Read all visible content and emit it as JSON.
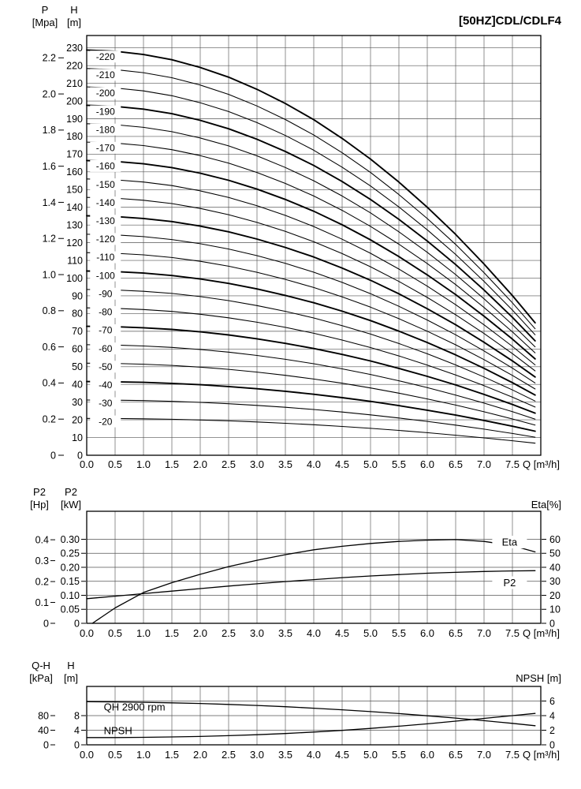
{
  "title": "[50HZ]CDL/CDLF4",
  "x_axis_label": "Q [m³/h]",
  "x_tick_labels": [
    "0.0",
    "0.5",
    "1.0",
    "1.5",
    "2.0",
    "2.5",
    "3.0",
    "3.5",
    "4.0",
    "4.5",
    "5.0",
    "5.5",
    "6.0",
    "6.5",
    "7.0",
    "7.5"
  ],
  "chart_data": [
    {
      "id": "qh-curves",
      "type": "line",
      "title": "[50HZ]CDL/CDLF4",
      "x_range": [
        0,
        8
      ],
      "y_range_m": [
        0,
        237
      ],
      "axis_p": {
        "title_lines": [
          "P",
          "[Mpa]"
        ],
        "labels": [
          "0",
          "0.2",
          "0.4",
          "0.6",
          "0.8",
          "1.0",
          "1.2",
          "1.4",
          "1.6",
          "1.8",
          "2.0",
          "2.2"
        ],
        "pos": [
          0,
          20.4,
          40.8,
          61.2,
          81.6,
          102,
          122.4,
          142.8,
          163.2,
          183.6,
          204,
          224.4
        ]
      },
      "axis_h": {
        "title_lines": [
          "H",
          "[m]"
        ],
        "labels": [
          "0",
          "10",
          "20",
          "30",
          "40",
          "50",
          "60",
          "70",
          "80",
          "90",
          "100",
          "110",
          "120",
          "130",
          "140",
          "150",
          "160",
          "170",
          "180",
          "190",
          "200",
          "210",
          "220",
          "230"
        ],
        "pos": [
          0,
          10,
          20,
          30,
          40,
          50,
          60,
          70,
          80,
          90,
          100,
          110,
          120,
          130,
          140,
          150,
          160,
          170,
          180,
          190,
          200,
          210,
          220,
          230
        ]
      },
      "note": "head_m[i] = h0 * head_factor[i]; curves are the CDL/CDLF4 stage family",
      "x_points": [
        0,
        0.5,
        1,
        1.5,
        2,
        2.5,
        3,
        3.5,
        4,
        4.5,
        5,
        5.5,
        6,
        6.5,
        7,
        7.5,
        7.9
      ],
      "head_factor": [
        1,
        0.997,
        0.989,
        0.976,
        0.957,
        0.933,
        0.903,
        0.868,
        0.828,
        0.782,
        0.731,
        0.674,
        0.612,
        0.545,
        0.472,
        0.394,
        0.327
      ],
      "curve_label_x": 0.33,
      "series": [
        {
          "label": "-20",
          "h0": 20.8,
          "label_h": 19.1,
          "bold": false
        },
        {
          "label": "-30",
          "h0": 31.2,
          "label_h": 29.4,
          "bold": false
        },
        {
          "label": "-40",
          "h0": 41.6,
          "label_h": 39.7,
          "bold": true
        },
        {
          "label": "-50",
          "h0": 52.0,
          "label_h": 50.0,
          "bold": false
        },
        {
          "label": "-60",
          "h0": 62.4,
          "label_h": 60.3,
          "bold": false
        },
        {
          "label": "-70",
          "h0": 72.8,
          "label_h": 70.6,
          "bold": true
        },
        {
          "label": "-80",
          "h0": 83.2,
          "label_h": 80.9,
          "bold": false
        },
        {
          "label": "-90",
          "h0": 93.6,
          "label_h": 91.2,
          "bold": false
        },
        {
          "label": "-100",
          "h0": 104.0,
          "label_h": 101.5,
          "bold": true
        },
        {
          "label": "-110",
          "h0": 114.4,
          "label_h": 111.8,
          "bold": false
        },
        {
          "label": "-120",
          "h0": 124.8,
          "label_h": 122.1,
          "bold": false
        },
        {
          "label": "-130",
          "h0": 135.2,
          "label_h": 132.4,
          "bold": true
        },
        {
          "label": "-140",
          "h0": 145.6,
          "label_h": 142.7,
          "bold": false
        },
        {
          "label": "-150",
          "h0": 156.0,
          "label_h": 153.0,
          "bold": false
        },
        {
          "label": "-160",
          "h0": 166.4,
          "label_h": 163.3,
          "bold": true
        },
        {
          "label": "-170",
          "h0": 176.8,
          "label_h": 173.6,
          "bold": false
        },
        {
          "label": "-180",
          "h0": 187.2,
          "label_h": 183.9,
          "bold": false
        },
        {
          "label": "-190",
          "h0": 197.6,
          "label_h": 194.2,
          "bold": true
        },
        {
          "label": "-200",
          "h0": 208.0,
          "label_h": 204.5,
          "bold": false
        },
        {
          "label": "-210",
          "h0": 218.4,
          "label_h": 214.8,
          "bold": false
        },
        {
          "label": "-220",
          "h0": 228.8,
          "label_h": 225.1,
          "bold": true
        }
      ]
    },
    {
      "id": "power-efficiency",
      "type": "line",
      "x_range": [
        0,
        8
      ],
      "kw_range": [
        0,
        0.4
      ],
      "grid_pos": [
        0.05,
        0.1,
        0.15,
        0.2,
        0.25,
        0.3
      ],
      "axis_hp": {
        "title_lines": [
          "P2",
          "[Hp]"
        ],
        "labels": [
          "0",
          "0.1",
          "0.2",
          "0.3",
          "0.4"
        ],
        "pos": [
          0,
          0.0746,
          0.1491,
          0.2237,
          0.2983
        ]
      },
      "axis_kw": {
        "title_lines": [
          "P2",
          "[kW]"
        ],
        "labels": [
          "0",
          "0.05",
          "0.10",
          "0.15",
          "0.20",
          "0.25",
          "0.30"
        ],
        "pos": [
          0,
          0.05,
          0.1,
          0.15,
          0.2,
          0.25,
          0.3
        ]
      },
      "axis_eta": {
        "title": "Eta[%]",
        "labels": [
          "0",
          "10",
          "20",
          "30",
          "40",
          "50",
          "60"
        ],
        "pos": [
          0,
          0.05,
          0.1,
          0.15,
          0.2,
          0.25,
          0.3
        ]
      },
      "series": [
        {
          "name": "Eta",
          "values_unit": "%",
          "scale": 0.005,
          "x": [
            0.1,
            0.5,
            1,
            1.5,
            2,
            2.5,
            3,
            3.5,
            4,
            4.5,
            5,
            5.5,
            6,
            6.5,
            7,
            7.5,
            7.9
          ],
          "y": [
            0,
            11,
            22,
            29,
            35,
            40.5,
            45,
            49,
            52.5,
            55,
            57,
            58.5,
            59.4,
            59.8,
            58.5,
            55.5,
            51
          ],
          "label": {
            "text": "Eta",
            "x": 7.45,
            "y": 58,
            "boxed": true
          }
        },
        {
          "name": "P2",
          "values_unit": "kW",
          "scale": 1,
          "x": [
            0,
            0.5,
            1,
            1.5,
            2,
            2.5,
            3,
            3.5,
            4,
            4.5,
            5,
            5.5,
            6,
            6.5,
            7,
            7.5,
            7.9
          ],
          "y": [
            0.088,
            0.097,
            0.106,
            0.115,
            0.124,
            0.133,
            0.141,
            0.149,
            0.156,
            0.163,
            0.169,
            0.174,
            0.179,
            0.182,
            0.185,
            0.187,
            0.188
          ],
          "label": {
            "text": "P2",
            "x": 7.45,
            "y": 0.145,
            "boxed": true
          }
        }
      ]
    },
    {
      "id": "qh-npsh",
      "type": "line",
      "x_range": [
        0,
        8
      ],
      "m_range": [
        0,
        16
      ],
      "grid_pos": [
        4,
        8,
        12
      ],
      "axis_kpa": {
        "title_lines": [
          "Q-H",
          "[kPa]"
        ],
        "labels": [
          "0",
          "40",
          "80"
        ],
        "pos": [
          0,
          4,
          8
        ]
      },
      "axis_m": {
        "title_lines": [
          "H",
          "[m]"
        ],
        "labels": [
          "0",
          "4",
          "8"
        ],
        "pos": [
          0,
          4,
          8
        ]
      },
      "axis_npsh": {
        "title": "NPSH [m]",
        "labels": [
          "0",
          "2",
          "4",
          "6"
        ],
        "pos": [
          0,
          4,
          8,
          12
        ]
      },
      "series": [
        {
          "name": "QH 2900 rpm",
          "values_unit": "m",
          "scale": 1,
          "x": [
            0,
            0.5,
            1,
            1.5,
            2,
            2.5,
            3,
            3.5,
            4,
            4.5,
            5,
            5.5,
            6,
            6.5,
            7,
            7.5,
            7.9
          ],
          "y": [
            11.8,
            11.76,
            11.66,
            11.51,
            11.32,
            11.07,
            10.78,
            10.44,
            10.04,
            9.6,
            9.1,
            8.56,
            7.96,
            7.32,
            6.62,
            5.88,
            5.24
          ],
          "label": {
            "text": "QH 2900 rpm",
            "x": 0.3,
            "y": 9.4,
            "boxed": false
          }
        },
        {
          "name": "NPSH",
          "values_unit": "m (NPSH scale)",
          "scale": 2,
          "x": [
            0,
            0.5,
            1,
            1.5,
            2,
            2.5,
            3,
            3.5,
            4,
            4.5,
            5,
            5.5,
            6,
            6.5,
            7,
            7.5,
            7.9
          ],
          "y": [
            1.0,
            1.0,
            1.03,
            1.08,
            1.15,
            1.25,
            1.38,
            1.55,
            1.75,
            1.98,
            2.25,
            2.55,
            2.88,
            3.24,
            3.62,
            4.0,
            4.3
          ],
          "label": {
            "text": "NPSH",
            "x": 0.3,
            "y": 1.45,
            "boxed": false
          }
        }
      ]
    }
  ]
}
